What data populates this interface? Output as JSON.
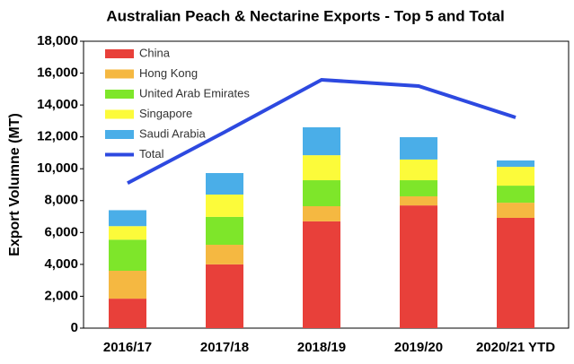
{
  "chart_data": {
    "type": "stacked_bar_line",
    "title": "Australian Peach & Nectarine Exports - Top 5 and Total",
    "y_label": "Export Volumne (MT)",
    "categories": [
      "2016/17",
      "2017/18",
      "2018/19",
      "2019/20",
      "2020/21 YTD"
    ],
    "series": [
      {
        "name": "China",
        "color": "#e8403a",
        "values": [
          1850,
          4000,
          6700,
          7700,
          6920
        ]
      },
      {
        "name": "Hong Kong",
        "color": "#f5b841",
        "values": [
          1750,
          1230,
          950,
          570,
          950
        ]
      },
      {
        "name": "United Arab Emirates",
        "color": "#7ee62a",
        "values": [
          1950,
          1750,
          1630,
          1010,
          1070
        ]
      },
      {
        "name": "Singapore",
        "color": "#fcfb3a",
        "values": [
          850,
          1400,
          1570,
          1300,
          1180
        ]
      },
      {
        "name": "Saudi Arabia",
        "color": "#4aaee8",
        "values": [
          1000,
          1350,
          1750,
          1400,
          400
        ]
      },
      {
        "name": "Total",
        "color": "#2d49e0",
        "type": "line",
        "values": [
          9100,
          12300,
          15580,
          15190,
          13220
        ]
      }
    ],
    "ylim": [
      0,
      18000
    ],
    "yticks": [
      0,
      {
        "value": 2000,
        "label": "2,000"
      },
      {
        "value": 4000,
        "label": "4,000"
      },
      {
        "value": 6000,
        "label": "6,000"
      },
      {
        "value": 8000,
        "label": "8,000"
      },
      {
        "value": 10000,
        "label": "10,000"
      },
      {
        "value": 12000,
        "label": "12,000"
      },
      {
        "value": 14000,
        "label": "14,000"
      },
      {
        "value": 16000,
        "label": "16,000"
      },
      {
        "value": 18000,
        "label": "18,000"
      }
    ],
    "legend": "upper left",
    "grid": false
  }
}
